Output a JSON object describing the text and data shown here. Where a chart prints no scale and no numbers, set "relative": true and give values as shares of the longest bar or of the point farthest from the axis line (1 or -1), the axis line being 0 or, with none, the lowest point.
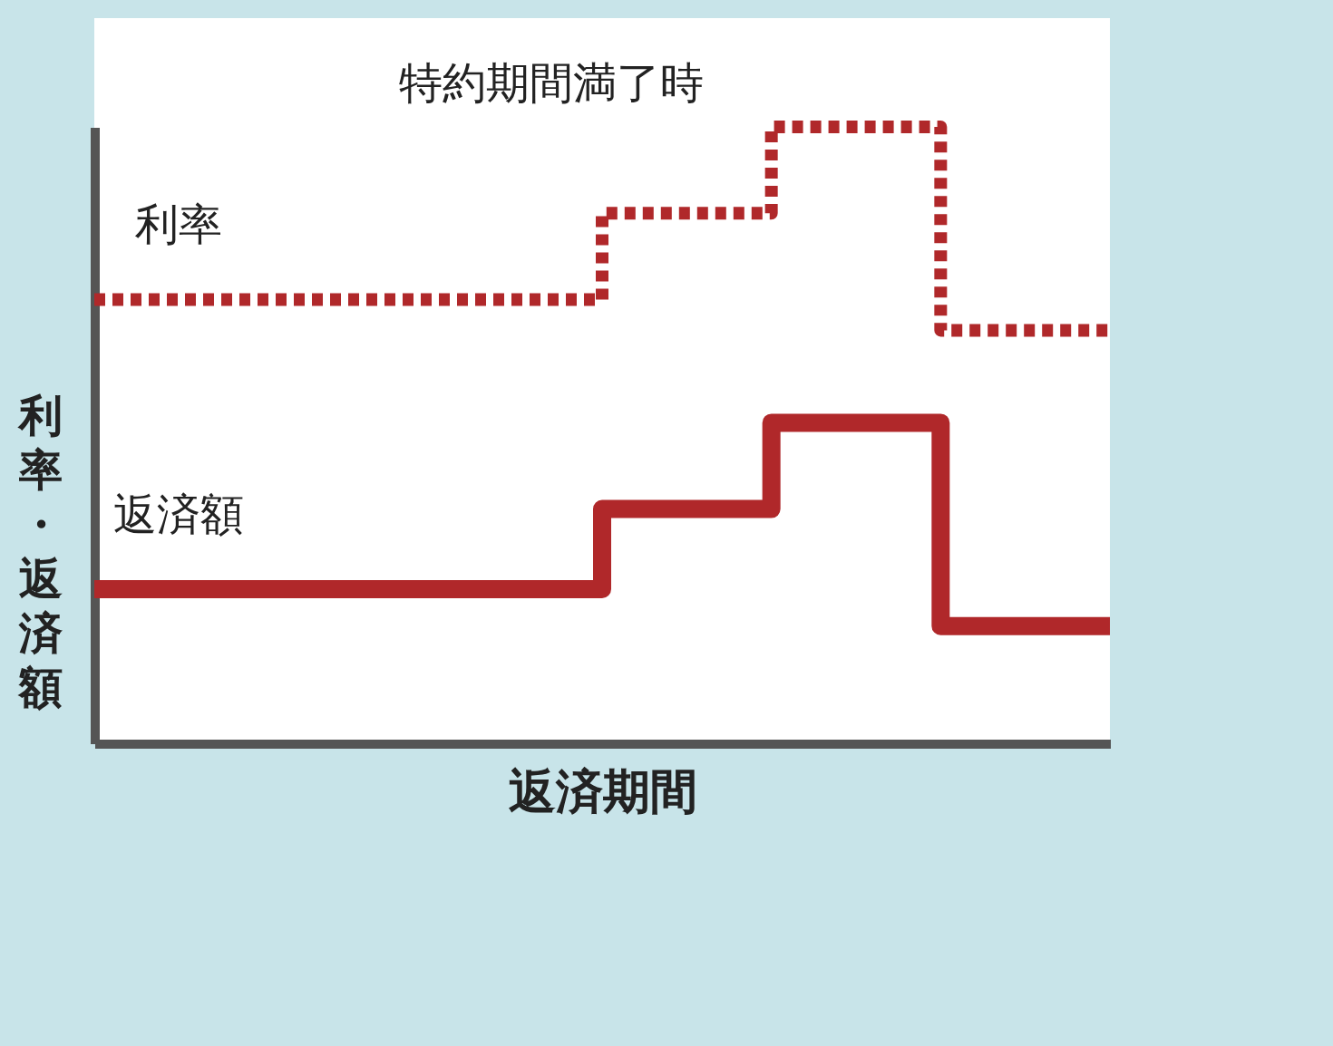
{
  "chart_data": {
    "type": "step",
    "relative": true,
    "xlabel": "返済期間",
    "ylabel": "利率・返済額",
    "categories": [
      null,
      null,
      null,
      null,
      null,
      null,
      null,
      null,
      null,
      null,
      null,
      null,
      null
    ],
    "series": [
      {
        "name": "利率",
        "color": "#b0282a",
        "line_style": "dotted",
        "values": [
          0.72,
          0.72,
          0.72,
          0.72,
          0.72,
          0.72,
          0.86,
          0.86,
          1,
          1,
          0.67,
          0.67,
          0.67
        ]
      },
      {
        "name": "返済額",
        "color": "#b0282a",
        "line_style": "solid",
        "values": [
          0.25,
          0.25,
          0.25,
          0.25,
          0.25,
          0.25,
          0.38,
          0.38,
          0.52,
          0.52,
          0.19,
          0.19,
          0.19
        ]
      }
    ],
    "annotations": [
      "特約期間満了時"
    ]
  }
}
